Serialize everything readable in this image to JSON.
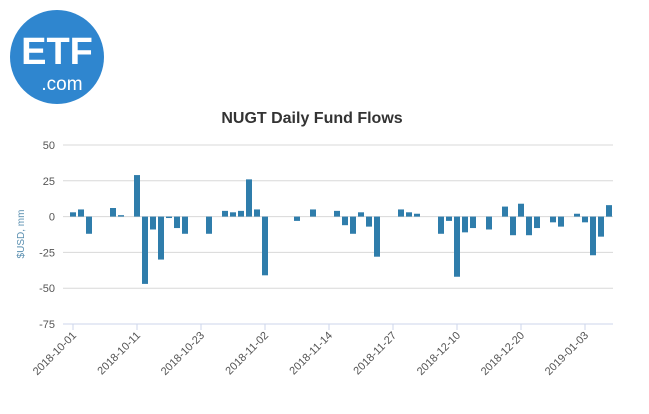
{
  "logo": {
    "main": "ETF",
    "sub": ".com"
  },
  "chart_data": {
    "type": "bar",
    "title": "NUGT Daily Fund Flows",
    "y_label": "$USD, mm",
    "color": "#2f7dab",
    "grid": true,
    "ylim": [
      -75,
      50
    ],
    "yticks": [
      -75,
      -50,
      -25,
      0,
      25,
      50
    ],
    "categories": [
      "2018-10-01",
      null,
      null,
      null,
      null,
      null,
      null,
      null,
      "2018-10-11",
      null,
      null,
      null,
      null,
      null,
      null,
      null,
      "2018-10-23",
      null,
      null,
      null,
      null,
      null,
      null,
      null,
      "2018-11-02",
      null,
      null,
      null,
      null,
      null,
      null,
      null,
      "2018-11-14",
      null,
      null,
      null,
      null,
      null,
      null,
      null,
      "2018-11-27",
      null,
      null,
      null,
      null,
      null,
      null,
      null,
      "2018-12-10",
      null,
      null,
      null,
      null,
      null,
      null,
      null,
      "2018-12-20",
      null,
      null,
      null,
      null,
      null,
      null,
      null,
      "2019-01-03",
      null,
      null,
      null
    ],
    "values": [
      3,
      5,
      -12,
      0,
      0,
      6,
      1,
      0,
      29,
      -47,
      -9,
      -30,
      -1,
      -8,
      -12,
      0,
      0,
      -12,
      0,
      4,
      3,
      4,
      26,
      5,
      -41,
      0,
      0,
      0,
      -3,
      0,
      5,
      0,
      0,
      4,
      -6,
      -12,
      3,
      -7,
      -28,
      0,
      0,
      5,
      3,
      2,
      0,
      0,
      -12,
      -3,
      -42,
      -11,
      -8,
      0,
      -9,
      0,
      7,
      -13,
      9,
      -13,
      -8,
      0,
      -4,
      -7,
      0,
      2,
      -4,
      -27,
      -14,
      8
    ]
  }
}
